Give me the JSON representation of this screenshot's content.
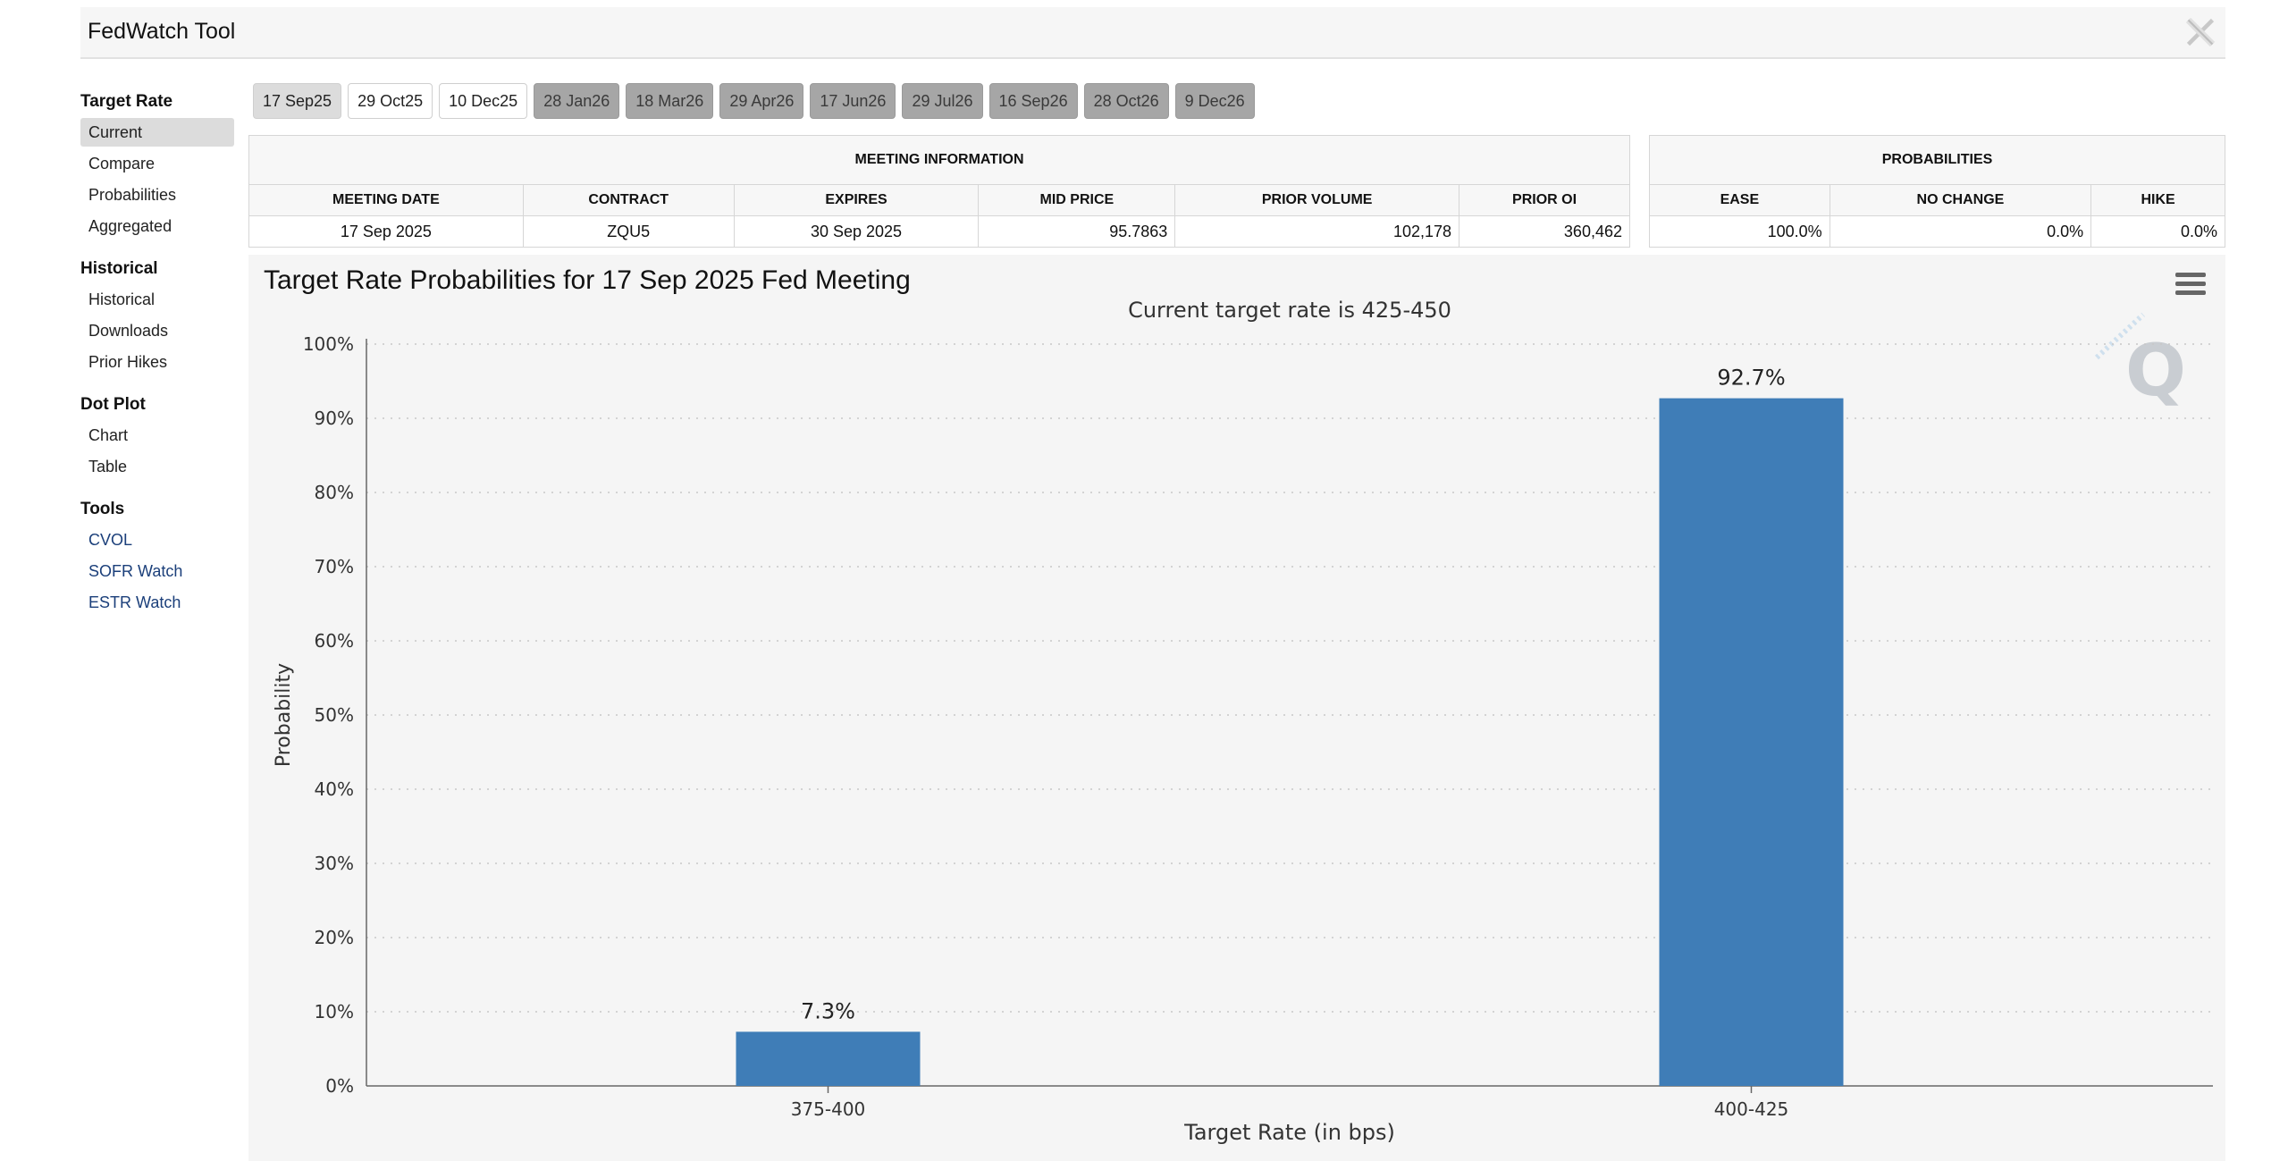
{
  "app": {
    "title": "FedWatch Tool",
    "close_icon": "x-logo-icon"
  },
  "sidebar": {
    "groups": [
      {
        "title": "Target Rate",
        "items": [
          "Current",
          "Compare",
          "Probabilities",
          "Aggregated"
        ]
      },
      {
        "title": "Historical",
        "items": [
          "Historical",
          "Downloads",
          "Prior Hikes"
        ]
      },
      {
        "title": "Dot Plot",
        "items": [
          "Chart",
          "Table"
        ]
      },
      {
        "title": "Tools",
        "items": [
          "CVOL",
          "SOFR Watch",
          "ESTR Watch"
        ]
      }
    ],
    "active_item": "Current"
  },
  "tabs": [
    "17 Sep25",
    "29 Oct25",
    "10 Dec25",
    "28 Jan26",
    "18 Mar26",
    "29 Apr26",
    "17 Jun26",
    "29 Jul26",
    "16 Sep26",
    "28 Oct26",
    "9 Dec26"
  ],
  "meeting_info": {
    "heading": "MEETING INFORMATION",
    "columns": [
      "MEETING DATE",
      "CONTRACT",
      "EXPIRES",
      "MID PRICE",
      "PRIOR VOLUME",
      "PRIOR OI"
    ],
    "row": [
      "17 Sep 2025",
      "ZQU5",
      "30 Sep 2025",
      "95.7863",
      "102,178",
      "360,462"
    ]
  },
  "probabilities": {
    "heading": "PROBABILITIES",
    "columns": [
      "EASE",
      "NO CHANGE",
      "HIKE"
    ],
    "row": [
      "100.0%",
      "0.0%",
      "0.0%"
    ]
  },
  "chart": {
    "menu_icon": "hamburger-menu-icon",
    "watermark_icon": "q-logo-icon"
  },
  "chart_data": {
    "type": "bar",
    "title": "Target Rate Probabilities for 17 Sep 2025 Fed Meeting",
    "subtitle": "Current target rate is 425-450",
    "categories": [
      "375-400",
      "400-425"
    ],
    "values": [
      7.3,
      92.7
    ],
    "data_labels": [
      "7.3%",
      "92.7%"
    ],
    "xlabel": "Target Rate (in bps)",
    "ylabel": "Probability",
    "ylim": [
      0,
      100
    ],
    "yticks": [
      "0%",
      "10%",
      "20%",
      "30%",
      "40%",
      "50%",
      "60%",
      "70%",
      "80%",
      "90%",
      "100%"
    ],
    "bar_color": "#3f7db7",
    "grid": true
  }
}
